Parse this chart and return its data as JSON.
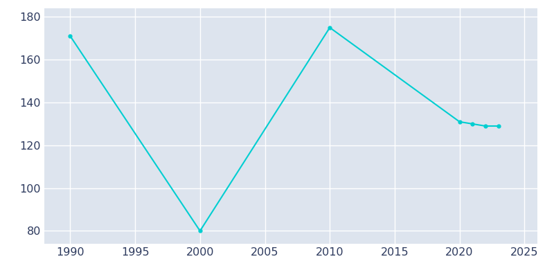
{
  "years": [
    1990,
    2000,
    2010,
    2020,
    2021,
    2022,
    2023
  ],
  "population": [
    171,
    80,
    175,
    131,
    130,
    129,
    129
  ],
  "line_color": "#00CED1",
  "marker": "o",
  "marker_size": 3.5,
  "line_width": 1.5,
  "plot_bg_color": "#DDE4EE",
  "fig_bg_color": "#ffffff",
  "grid_color": "#ffffff",
  "grid_linewidth": 1.0,
  "xlim": [
    1988,
    2026
  ],
  "ylim": [
    74,
    184
  ],
  "xticks": [
    1990,
    1995,
    2000,
    2005,
    2010,
    2015,
    2020,
    2025
  ],
  "yticks": [
    80,
    100,
    120,
    140,
    160,
    180
  ],
  "tick_label_color": "#2D3A5E",
  "tick_fontsize": 11.5
}
